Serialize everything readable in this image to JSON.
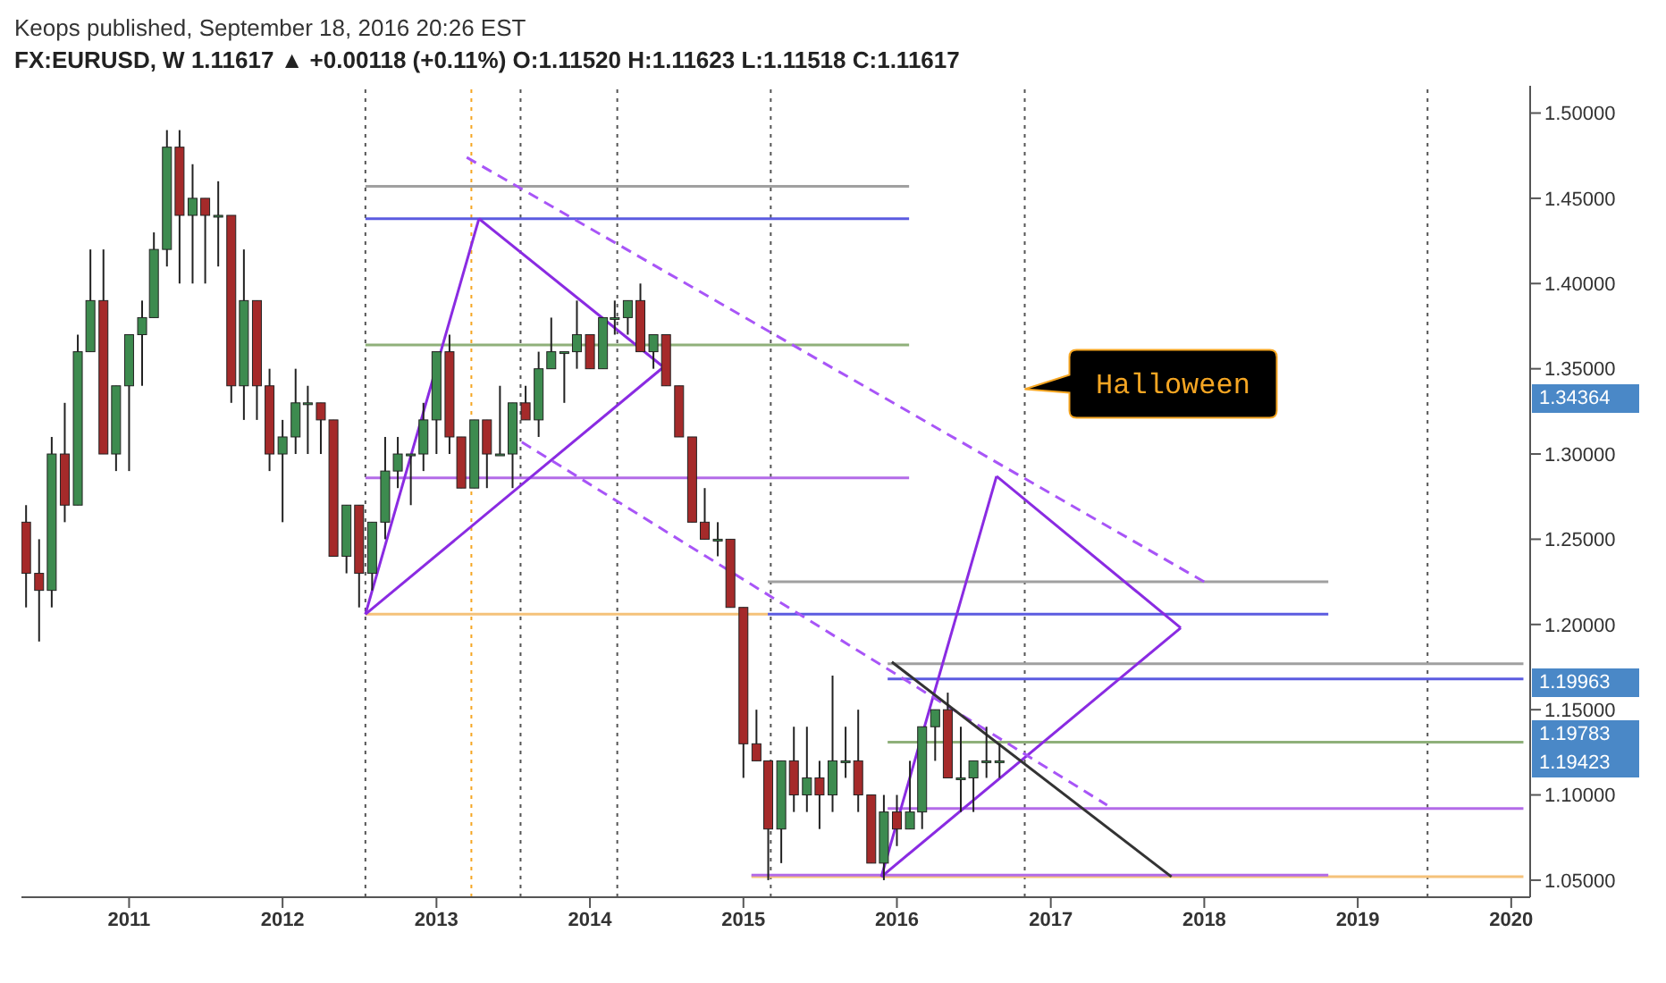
{
  "chart_data": {
    "type": "candlestick",
    "title": "Keops published, September 18, 2016 20:26 EST",
    "subtitle": "FX:EURUSD, W 1.11617 ▲ +0.00118 (+0.11%) O:1.11520 H:1.11623 L:1.11518 C:1.11617",
    "x": [
      "2010-05",
      "2010-06",
      "2010-07",
      "2010-08",
      "2010-09",
      "2010-10",
      "2010-11",
      "2010-12",
      "2011-01",
      "2011-02",
      "2011-03",
      "2011-04",
      "2011-05",
      "2011-06",
      "2011-07",
      "2011-08",
      "2011-09",
      "2011-10",
      "2011-11",
      "2011-12",
      "2012-01",
      "2012-02",
      "2012-03",
      "2012-04",
      "2012-05",
      "2012-06",
      "2012-07",
      "2012-08",
      "2012-09",
      "2012-10",
      "2012-11",
      "2012-12",
      "2013-01",
      "2013-02",
      "2013-03",
      "2013-04",
      "2013-05",
      "2013-06",
      "2013-07",
      "2013-08",
      "2013-09",
      "2013-10",
      "2013-11",
      "2013-12",
      "2014-01",
      "2014-02",
      "2014-03",
      "2014-04",
      "2014-05",
      "2014-06",
      "2014-07",
      "2014-08",
      "2014-09",
      "2014-10",
      "2014-11",
      "2014-12",
      "2015-01",
      "2015-02",
      "2015-03",
      "2015-04",
      "2015-05",
      "2015-06",
      "2015-07",
      "2015-08",
      "2015-09",
      "2015-10",
      "2015-11",
      "2015-12",
      "2016-01",
      "2016-02",
      "2016-03",
      "2016-04",
      "2016-05",
      "2016-06",
      "2016-07",
      "2016-08",
      "2016-09"
    ],
    "ohlc": [
      [
        1.26,
        1.27,
        1.21,
        1.23
      ],
      [
        1.23,
        1.25,
        1.19,
        1.22
      ],
      [
        1.22,
        1.31,
        1.21,
        1.3
      ],
      [
        1.3,
        1.33,
        1.26,
        1.27
      ],
      [
        1.27,
        1.37,
        1.27,
        1.36
      ],
      [
        1.36,
        1.42,
        1.36,
        1.39
      ],
      [
        1.39,
        1.42,
        1.3,
        1.3
      ],
      [
        1.3,
        1.34,
        1.29,
        1.34
      ],
      [
        1.34,
        1.37,
        1.29,
        1.37
      ],
      [
        1.37,
        1.39,
        1.34,
        1.38
      ],
      [
        1.38,
        1.43,
        1.38,
        1.42
      ],
      [
        1.42,
        1.49,
        1.41,
        1.48
      ],
      [
        1.48,
        1.49,
        1.4,
        1.44
      ],
      [
        1.44,
        1.47,
        1.4,
        1.45
      ],
      [
        1.45,
        1.45,
        1.4,
        1.44
      ],
      [
        1.44,
        1.46,
        1.41,
        1.44
      ],
      [
        1.44,
        1.44,
        1.33,
        1.34
      ],
      [
        1.34,
        1.42,
        1.32,
        1.39
      ],
      [
        1.39,
        1.39,
        1.32,
        1.34
      ],
      [
        1.34,
        1.35,
        1.29,
        1.3
      ],
      [
        1.3,
        1.32,
        1.26,
        1.31
      ],
      [
        1.31,
        1.35,
        1.3,
        1.33
      ],
      [
        1.33,
        1.34,
        1.3,
        1.33
      ],
      [
        1.33,
        1.33,
        1.3,
        1.32
      ],
      [
        1.32,
        1.32,
        1.24,
        1.24
      ],
      [
        1.24,
        1.27,
        1.23,
        1.27
      ],
      [
        1.27,
        1.27,
        1.21,
        1.23
      ],
      [
        1.23,
        1.26,
        1.22,
        1.26
      ],
      [
        1.26,
        1.31,
        1.25,
        1.29
      ],
      [
        1.29,
        1.31,
        1.28,
        1.3
      ],
      [
        1.3,
        1.3,
        1.27,
        1.3
      ],
      [
        1.3,
        1.33,
        1.29,
        1.32
      ],
      [
        1.32,
        1.36,
        1.3,
        1.36
      ],
      [
        1.36,
        1.37,
        1.3,
        1.31
      ],
      [
        1.31,
        1.31,
        1.28,
        1.28
      ],
      [
        1.28,
        1.32,
        1.28,
        1.32
      ],
      [
        1.32,
        1.32,
        1.28,
        1.3
      ],
      [
        1.3,
        1.34,
        1.3,
        1.3
      ],
      [
        1.3,
        1.33,
        1.28,
        1.33
      ],
      [
        1.33,
        1.34,
        1.32,
        1.32
      ],
      [
        1.32,
        1.36,
        1.31,
        1.35
      ],
      [
        1.35,
        1.38,
        1.35,
        1.36
      ],
      [
        1.36,
        1.36,
        1.33,
        1.36
      ],
      [
        1.36,
        1.39,
        1.35,
        1.37
      ],
      [
        1.37,
        1.37,
        1.35,
        1.35
      ],
      [
        1.35,
        1.38,
        1.35,
        1.38
      ],
      [
        1.38,
        1.39,
        1.37,
        1.38
      ],
      [
        1.38,
        1.39,
        1.37,
        1.39
      ],
      [
        1.39,
        1.4,
        1.36,
        1.36
      ],
      [
        1.36,
        1.37,
        1.35,
        1.37
      ],
      [
        1.37,
        1.37,
        1.34,
        1.34
      ],
      [
        1.34,
        1.34,
        1.31,
        1.31
      ],
      [
        1.31,
        1.31,
        1.26,
        1.26
      ],
      [
        1.26,
        1.28,
        1.25,
        1.25
      ],
      [
        1.25,
        1.26,
        1.24,
        1.25
      ],
      [
        1.25,
        1.25,
        1.21,
        1.21
      ],
      [
        1.21,
        1.21,
        1.11,
        1.13
      ],
      [
        1.13,
        1.15,
        1.12,
        1.12
      ],
      [
        1.12,
        1.12,
        1.05,
        1.08
      ],
      [
        1.08,
        1.12,
        1.06,
        1.12
      ],
      [
        1.12,
        1.14,
        1.09,
        1.1
      ],
      [
        1.1,
        1.14,
        1.09,
        1.11
      ],
      [
        1.11,
        1.12,
        1.08,
        1.1
      ],
      [
        1.1,
        1.17,
        1.09,
        1.12
      ],
      [
        1.12,
        1.14,
        1.11,
        1.12
      ],
      [
        1.12,
        1.15,
        1.09,
        1.1
      ],
      [
        1.1,
        1.1,
        1.06,
        1.06
      ],
      [
        1.06,
        1.1,
        1.05,
        1.09
      ],
      [
        1.09,
        1.1,
        1.07,
        1.08
      ],
      [
        1.08,
        1.12,
        1.08,
        1.09
      ],
      [
        1.09,
        1.14,
        1.08,
        1.14
      ],
      [
        1.14,
        1.15,
        1.12,
        1.15
      ],
      [
        1.15,
        1.16,
        1.11,
        1.11
      ],
      [
        1.11,
        1.14,
        1.09,
        1.11
      ],
      [
        1.11,
        1.12,
        1.09,
        1.12
      ],
      [
        1.12,
        1.14,
        1.11,
        1.12
      ],
      [
        1.12,
        1.13,
        1.11,
        1.12
      ]
    ],
    "series": [
      {
        "type": "line",
        "color": "#a0a0a0",
        "x": [
          "2012-07-16",
          "2016-01-30"
        ],
        "values": [
          1.457,
          1.457
        ]
      },
      {
        "type": "line",
        "color": "#5b5be0",
        "x": [
          "2012-07-16",
          "2016-01-30"
        ],
        "values": [
          1.438,
          1.438
        ]
      },
      {
        "type": "line",
        "color": "#8fb07a",
        "x": [
          "2012-07-16",
          "2016-01-30"
        ],
        "values": [
          1.364,
          1.364
        ]
      },
      {
        "type": "line",
        "color": "#b36be8",
        "x": [
          "2012-07-16",
          "2016-01-30"
        ],
        "values": [
          1.286,
          1.286
        ]
      },
      {
        "type": "line",
        "color": "#f5c27a",
        "x": [
          "2012-07-16",
          "2015-02-28"
        ],
        "values": [
          1.206,
          1.206
        ]
      },
      {
        "type": "line",
        "color": "#a0a0a0",
        "x": [
          "2015-02-28",
          "2018-10-23"
        ],
        "values": [
          1.225,
          1.225
        ]
      },
      {
        "type": "line",
        "color": "#5b5be0",
        "x": [
          "2015-02-28",
          "2018-10-23"
        ],
        "values": [
          1.206,
          1.206
        ]
      },
      {
        "type": "line",
        "color": "#a0a0a0",
        "x": [
          "2015-12-10",
          "2020-01-30"
        ],
        "values": [
          1.177,
          1.177
        ]
      },
      {
        "type": "line",
        "color": "#5b5be0",
        "x": [
          "2015-12-10",
          "2020-01-30"
        ],
        "values": [
          1.168,
          1.168
        ]
      },
      {
        "type": "line",
        "color": "#8fb07a",
        "x": [
          "2015-12-10",
          "2020-01-30"
        ],
        "values": [
          1.131,
          1.131
        ]
      },
      {
        "type": "line",
        "color": "#b36be8",
        "x": [
          "2015-12-10",
          "2020-01-30"
        ],
        "values": [
          1.092,
          1.092
        ]
      },
      {
        "type": "line",
        "color": "#f5c27a",
        "x": [
          "2015-01-20",
          "2020-01-30"
        ],
        "values": [
          1.052,
          1.052
        ]
      },
      {
        "type": "line",
        "color": "#b36be8",
        "x": [
          "2015-01-20",
          "2018-10-23"
        ],
        "values": [
          1.053,
          1.053
        ]
      },
      {
        "type": "line",
        "color": "#8a2be2",
        "x": [
          "2012-07-16",
          "2013-04-12"
        ],
        "values": [
          1.206,
          1.438
        ]
      },
      {
        "type": "line",
        "color": "#8a2be2",
        "x": [
          "2013-04-12",
          "2014-06-25"
        ],
        "values": [
          1.438,
          1.351
        ]
      },
      {
        "type": "line",
        "color": "#8a2be2",
        "x": [
          "2012-07-16",
          "2014-06-25"
        ],
        "values": [
          1.206,
          1.351
        ]
      },
      {
        "type": "line",
        "color": "#8a2be2",
        "x": [
          "2015-11-25",
          "2016-08-25"
        ],
        "values": [
          1.052,
          1.287
        ]
      },
      {
        "type": "line",
        "color": "#8a2be2",
        "x": [
          "2016-08-25",
          "2017-11-06"
        ],
        "values": [
          1.287,
          1.198
        ]
      },
      {
        "type": "line",
        "color": "#8a2be2",
        "x": [
          "2015-11-25",
          "2017-11-06"
        ],
        "values": [
          1.052,
          1.198
        ]
      },
      {
        "type": "line",
        "color": "#a855f7",
        "line_style": "dashed",
        "x": [
          "2013-03-14",
          "2018-01-15"
        ],
        "values": [
          1.474,
          1.223
        ]
      },
      {
        "type": "line",
        "color": "#a855f7",
        "line_style": "dashed",
        "x": [
          "2013-07-23",
          "2017-05-15"
        ],
        "values": [
          1.307,
          1.094
        ]
      },
      {
        "type": "line",
        "color": "#333333",
        "x": [
          "2015-12-20",
          "2017-10-15"
        ],
        "values": [
          1.178,
          1.052
        ]
      }
    ],
    "ref_lines": [
      {
        "axis": "x",
        "value": "2012-07-16",
        "color": "#555555",
        "line_style": "dotted"
      },
      {
        "axis": "x",
        "value": "2013-03-25",
        "color": "#f5a623",
        "line_style": "dotted"
      },
      {
        "axis": "x",
        "value": "2013-07-20",
        "color": "#555555",
        "line_style": "dotted"
      },
      {
        "axis": "x",
        "value": "2014-03-07",
        "color": "#555555",
        "line_style": "dotted"
      },
      {
        "axis": "x",
        "value": "2015-03-07",
        "color": "#555555",
        "line_style": "dotted"
      },
      {
        "axis": "x",
        "value": "2016-10-31",
        "color": "#555555",
        "line_style": "dotted"
      },
      {
        "axis": "x",
        "value": "2019-06-16",
        "color": "#555555",
        "line_style": "dotted"
      }
    ],
    "annotations": [
      {
        "text": "Halloween",
        "x": "2016-10-31",
        "y": 1.338
      },
      "1.34364",
      "1.19963",
      "1.19783",
      "1.19423"
    ],
    "xlim": [
      "2010-04-20",
      "2020-02-15"
    ],
    "xticks": [
      "2011",
      "2012",
      "2013",
      "2014",
      "2015",
      "2016",
      "2017",
      "2018",
      "2019",
      "2020"
    ],
    "ylim": [
      1.04,
      1.516
    ],
    "yticks": [
      {
        "value": 1.05,
        "label": "1.05000"
      },
      {
        "value": 1.1,
        "label": "1.10000"
      },
      {
        "value": 1.15,
        "label": "1.15000"
      },
      {
        "value": 1.2,
        "label": "1.20000"
      },
      {
        "value": 1.25,
        "label": "1.25000"
      },
      {
        "value": 1.3,
        "label": "1.30000"
      },
      {
        "value": 1.35,
        "label": "1.35000"
      },
      {
        "value": 1.4,
        "label": "1.40000"
      },
      {
        "value": 1.45,
        "label": "1.45000"
      },
      {
        "value": 1.5,
        "label": "1.50000"
      }
    ]
  }
}
